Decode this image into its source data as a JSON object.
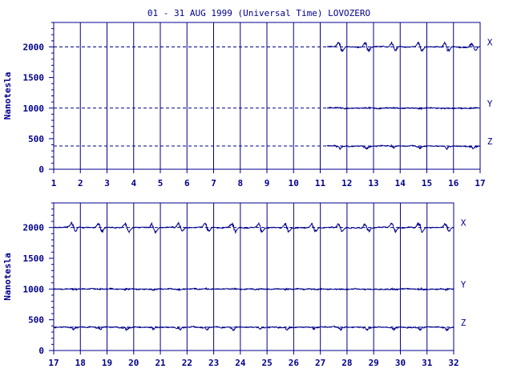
{
  "colors": {
    "ink": "#00008b",
    "background": "#ffffff"
  },
  "chart_data": {
    "type": "line",
    "title": "01 - 31 AUG 1999 (Universal Time) LOVOZERO",
    "ylabel": "Nanotesla",
    "yticks": [
      0,
      500,
      1000,
      1500,
      2000
    ],
    "grid": true,
    "panels": [
      {
        "xlim": [
          1,
          17
        ],
        "xticks": [
          1,
          2,
          3,
          4,
          5,
          6,
          7,
          8,
          9,
          10,
          11,
          12,
          13,
          14,
          15,
          16,
          17
        ],
        "data_start": 11.25,
        "ylim": [
          0,
          2400
        ],
        "series": [
          {
            "name": "X",
            "baseline": 2000
          },
          {
            "name": "Y",
            "baseline": 1000
          },
          {
            "name": "Z",
            "baseline": 380
          }
        ]
      },
      {
        "xlim": [
          17,
          32
        ],
        "xticks": [
          17,
          18,
          19,
          20,
          21,
          22,
          23,
          24,
          25,
          26,
          27,
          28,
          29,
          30,
          31,
          32
        ],
        "data_start": 17,
        "ylim": [
          0,
          2400
        ],
        "series": [
          {
            "name": "X",
            "baseline": 2000
          },
          {
            "name": "Y",
            "baseline": 1000
          },
          {
            "name": "Z",
            "baseline": 380
          }
        ]
      }
    ]
  }
}
